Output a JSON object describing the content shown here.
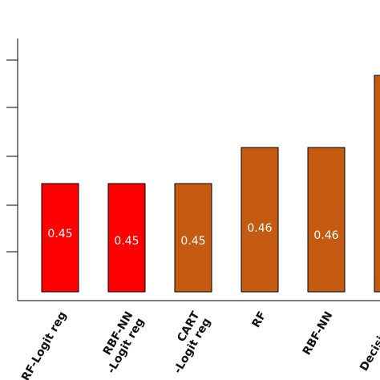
{
  "chart_data": {
    "type": "bar",
    "categories": [
      "RF-Logit reg",
      "RBF-NN\n-Logit reg",
      "CART\n-Logit reg",
      "RF",
      "RBF-NN",
      "Decision..."
    ],
    "values": [
      0.45,
      0.45,
      0.45,
      0.46,
      0.46,
      0.48
    ],
    "value_labels": [
      "0.45",
      "0.45",
      "0.45",
      "0.46",
      "0.46",
      ""
    ],
    "colors": [
      "#ff0000",
      "#ff0000",
      "#c55a11",
      "#c55a11",
      "#c55a11",
      "#c55a11"
    ],
    "xlabel": "",
    "ylabel": "",
    "ylim": [
      0.42,
      0.5
    ],
    "grid": false,
    "legend": "none"
  }
}
